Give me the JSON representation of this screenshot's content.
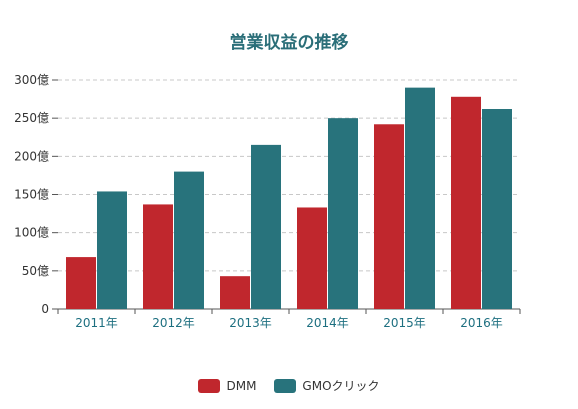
{
  "chart_data": {
    "type": "bar",
    "title": "営業収益の推移",
    "categories": [
      "2011年",
      "2012年",
      "2013年",
      "2014年",
      "2015年",
      "2016年"
    ],
    "series": [
      {
        "name": "DMM",
        "values": [
          68,
          137,
          43,
          133,
          242,
          278
        ],
        "color": "#c0272d"
      },
      {
        "name": "GMOクリック",
        "values": [
          154,
          180,
          215,
          250,
          290,
          262
        ],
        "color": "#28737c"
      }
    ],
    "ylim": [
      0,
      300
    ],
    "yticks": [
      0,
      50,
      100,
      150,
      200,
      250,
      300
    ],
    "ytick_labels": [
      "0",
      "50億",
      "100億",
      "150億",
      "200億",
      "250億",
      "300億"
    ],
    "grid": true,
    "legend": "bottom"
  }
}
